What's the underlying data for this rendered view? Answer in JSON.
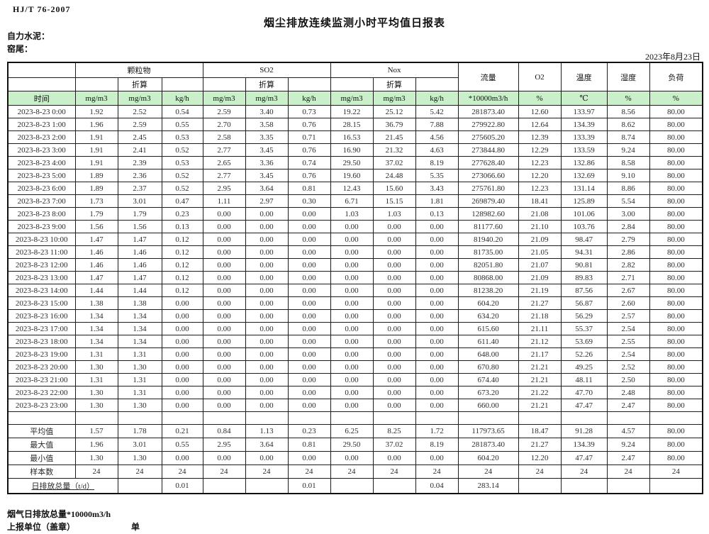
{
  "meta": {
    "standard_no": "HJ/T 76-2007",
    "title": "烟尘排放连续监测小时平均值日报表",
    "company": "自力水泥：",
    "location": "窑尾：",
    "date": "2023年8月23日"
  },
  "table": {
    "header": {
      "time": "时间",
      "groups": [
        "颗粒物",
        "SO2",
        "Nox"
      ],
      "converted": "折算",
      "flow": "流量",
      "o2": "O2",
      "temperature": "温度",
      "humidity": "湿度",
      "load": "负荷",
      "units": {
        "mg": "mg/m3",
        "kgh": "kg/h",
        "flow": "*10000m3/h",
        "pct": "%",
        "temp": "℃"
      }
    },
    "rows": [
      {
        "time": "2023-8-23 0:00",
        "v": [
          "1.92",
          "2.52",
          "0.54",
          "2.59",
          "3.40",
          "0.73",
          "19.22",
          "25.12",
          "5.42",
          "281873.40",
          "12.60",
          "133.97",
          "8.56",
          "80.00"
        ]
      },
      {
        "time": "2023-8-23 1:00",
        "v": [
          "1.96",
          "2.59",
          "0.55",
          "2.70",
          "3.58",
          "0.76",
          "28.15",
          "36.79",
          "7.88",
          "279922.80",
          "12.64",
          "134.39",
          "8.62",
          "80.00"
        ]
      },
      {
        "time": "2023-8-23 2:00",
        "v": [
          "1.91",
          "2.45",
          "0.53",
          "2.58",
          "3.35",
          "0.71",
          "16.53",
          "21.45",
          "4.56",
          "275605.20",
          "12.39",
          "133.39",
          "8.74",
          "80.00"
        ]
      },
      {
        "time": "2023-8-23 3:00",
        "v": [
          "1.91",
          "2.41",
          "0.52",
          "2.77",
          "3.45",
          "0.76",
          "16.90",
          "21.32",
          "4.63",
          "273844.80",
          "12.29",
          "133.59",
          "9.24",
          "80.00"
        ]
      },
      {
        "time": "2023-8-23 4:00",
        "v": [
          "1.91",
          "2.39",
          "0.53",
          "2.65",
          "3.36",
          "0.74",
          "29.50",
          "37.02",
          "8.19",
          "277628.40",
          "12.23",
          "132.86",
          "8.58",
          "80.00"
        ]
      },
      {
        "time": "2023-8-23 5:00",
        "v": [
          "1.89",
          "2.36",
          "0.52",
          "2.77",
          "3.45",
          "0.76",
          "19.60",
          "24.48",
          "5.35",
          "273066.60",
          "12.20",
          "132.69",
          "9.10",
          "80.00"
        ]
      },
      {
        "time": "2023-8-23 6:00",
        "v": [
          "1.89",
          "2.37",
          "0.52",
          "2.95",
          "3.64",
          "0.81",
          "12.43",
          "15.60",
          "3.43",
          "275761.80",
          "12.23",
          "131.14",
          "8.86",
          "80.00"
        ]
      },
      {
        "time": "2023-8-23 7:00",
        "v": [
          "1.73",
          "3.01",
          "0.47",
          "1.11",
          "2.97",
          "0.30",
          "6.71",
          "15.15",
          "1.81",
          "269879.40",
          "18.41",
          "125.89",
          "5.54",
          "80.00"
        ]
      },
      {
        "time": "2023-8-23 8:00",
        "v": [
          "1.79",
          "1.79",
          "0.23",
          "0.00",
          "0.00",
          "0.00",
          "1.03",
          "1.03",
          "0.13",
          "128982.60",
          "21.08",
          "101.06",
          "3.00",
          "80.00"
        ]
      },
      {
        "time": "2023-8-23 9:00",
        "v": [
          "1.56",
          "1.56",
          "0.13",
          "0.00",
          "0.00",
          "0.00",
          "0.00",
          "0.00",
          "0.00",
          "81177.60",
          "21.10",
          "103.76",
          "2.84",
          "80.00"
        ]
      },
      {
        "time": "2023-8-23 10:00",
        "v": [
          "1.47",
          "1.47",
          "0.12",
          "0.00",
          "0.00",
          "0.00",
          "0.00",
          "0.00",
          "0.00",
          "81940.20",
          "21.09",
          "98.47",
          "2.79",
          "80.00"
        ]
      },
      {
        "time": "2023-8-23 11:00",
        "v": [
          "1.46",
          "1.46",
          "0.12",
          "0.00",
          "0.00",
          "0.00",
          "0.00",
          "0.00",
          "0.00",
          "81735.00",
          "21.05",
          "94.31",
          "2.86",
          "80.00"
        ]
      },
      {
        "time": "2023-8-23 12:00",
        "v": [
          "1.46",
          "1.46",
          "0.12",
          "0.00",
          "0.00",
          "0.00",
          "0.00",
          "0.00",
          "0.00",
          "82051.80",
          "21.07",
          "90.81",
          "2.82",
          "80.00"
        ]
      },
      {
        "time": "2023-8-23 13:00",
        "v": [
          "1.47",
          "1.47",
          "0.12",
          "0.00",
          "0.00",
          "0.00",
          "0.00",
          "0.00",
          "0.00",
          "80868.00",
          "21.09",
          "89.83",
          "2.71",
          "80.00"
        ]
      },
      {
        "time": "2023-8-23 14:00",
        "v": [
          "1.44",
          "1.44",
          "0.12",
          "0.00",
          "0.00",
          "0.00",
          "0.00",
          "0.00",
          "0.00",
          "81238.20",
          "21.19",
          "87.56",
          "2.67",
          "80.00"
        ]
      },
      {
        "time": "2023-8-23 15:00",
        "v": [
          "1.38",
          "1.38",
          "0.00",
          "0.00",
          "0.00",
          "0.00",
          "0.00",
          "0.00",
          "0.00",
          "604.20",
          "21.27",
          "56.87",
          "2.60",
          "80.00"
        ]
      },
      {
        "time": "2023-8-23 16:00",
        "v": [
          "1.34",
          "1.34",
          "0.00",
          "0.00",
          "0.00",
          "0.00",
          "0.00",
          "0.00",
          "0.00",
          "634.20",
          "21.18",
          "56.29",
          "2.57",
          "80.00"
        ]
      },
      {
        "time": "2023-8-23 17:00",
        "v": [
          "1.34",
          "1.34",
          "0.00",
          "0.00",
          "0.00",
          "0.00",
          "0.00",
          "0.00",
          "0.00",
          "615.60",
          "21.11",
          "55.37",
          "2.54",
          "80.00"
        ]
      },
      {
        "time": "2023-8-23 18:00",
        "v": [
          "1.34",
          "1.34",
          "0.00",
          "0.00",
          "0.00",
          "0.00",
          "0.00",
          "0.00",
          "0.00",
          "611.40",
          "21.12",
          "53.69",
          "2.55",
          "80.00"
        ]
      },
      {
        "time": "2023-8-23 19:00",
        "v": [
          "1.31",
          "1.31",
          "0.00",
          "0.00",
          "0.00",
          "0.00",
          "0.00",
          "0.00",
          "0.00",
          "648.00",
          "21.17",
          "52.26",
          "2.54",
          "80.00"
        ]
      },
      {
        "time": "2023-8-23 20:00",
        "v": [
          "1.30",
          "1.30",
          "0.00",
          "0.00",
          "0.00",
          "0.00",
          "0.00",
          "0.00",
          "0.00",
          "670.80",
          "21.21",
          "49.25",
          "2.52",
          "80.00"
        ]
      },
      {
        "time": "2023-8-23 21:00",
        "v": [
          "1.31",
          "1.31",
          "0.00",
          "0.00",
          "0.00",
          "0.00",
          "0.00",
          "0.00",
          "0.00",
          "674.40",
          "21.21",
          "48.11",
          "2.50",
          "80.00"
        ]
      },
      {
        "time": "2023-8-23 22:00",
        "v": [
          "1.30",
          "1.31",
          "0.00",
          "0.00",
          "0.00",
          "0.00",
          "0.00",
          "0.00",
          "0.00",
          "673.20",
          "21.22",
          "47.70",
          "2.48",
          "80.00"
        ]
      },
      {
        "time": "2023-8-23 23:00",
        "v": [
          "1.30",
          "1.30",
          "0.00",
          "0.00",
          "0.00",
          "0.00",
          "0.00",
          "0.00",
          "0.00",
          "660.00",
          "21.21",
          "47.47",
          "2.47",
          "80.00"
        ]
      }
    ],
    "summary": [
      {
        "label": "平均值",
        "v": [
          "1.57",
          "1.78",
          "0.21",
          "0.84",
          "1.13",
          "0.23",
          "6.25",
          "8.25",
          "1.72",
          "117973.65",
          "18.47",
          "91.28",
          "4.57",
          "80.00"
        ]
      },
      {
        "label": "最大值",
        "v": [
          "1.96",
          "3.01",
          "0.55",
          "2.95",
          "3.64",
          "0.81",
          "29.50",
          "37.02",
          "8.19",
          "281873.40",
          "21.27",
          "134.39",
          "9.24",
          "80.00"
        ]
      },
      {
        "label": "最小值",
        "v": [
          "1.30",
          "1.30",
          "0.00",
          "0.00",
          "0.00",
          "0.00",
          "0.00",
          "0.00",
          "0.00",
          "604.20",
          "12.20",
          "47.47",
          "2.47",
          "80.00"
        ]
      },
      {
        "label": "样本数",
        "v": [
          "24",
          "24",
          "24",
          "24",
          "24",
          "24",
          "24",
          "24",
          "24",
          "24",
          "24",
          "24",
          "24",
          "24"
        ]
      }
    ],
    "total_row": {
      "label": "日排放总量（t/d）",
      "cells": [
        "",
        "0.01",
        "",
        "",
        "0.01",
        "",
        "",
        "0.04",
        "283.14",
        "",
        "",
        "",
        ""
      ]
    }
  },
  "footer": {
    "flue_total": "烟气日排放总量*10000m3/h",
    "report_unit": "上报单位（盖章）",
    "unit": "单位"
  },
  "colors": {
    "unit_row_green": "#c9f0c9",
    "border": "#1c1c1c"
  }
}
